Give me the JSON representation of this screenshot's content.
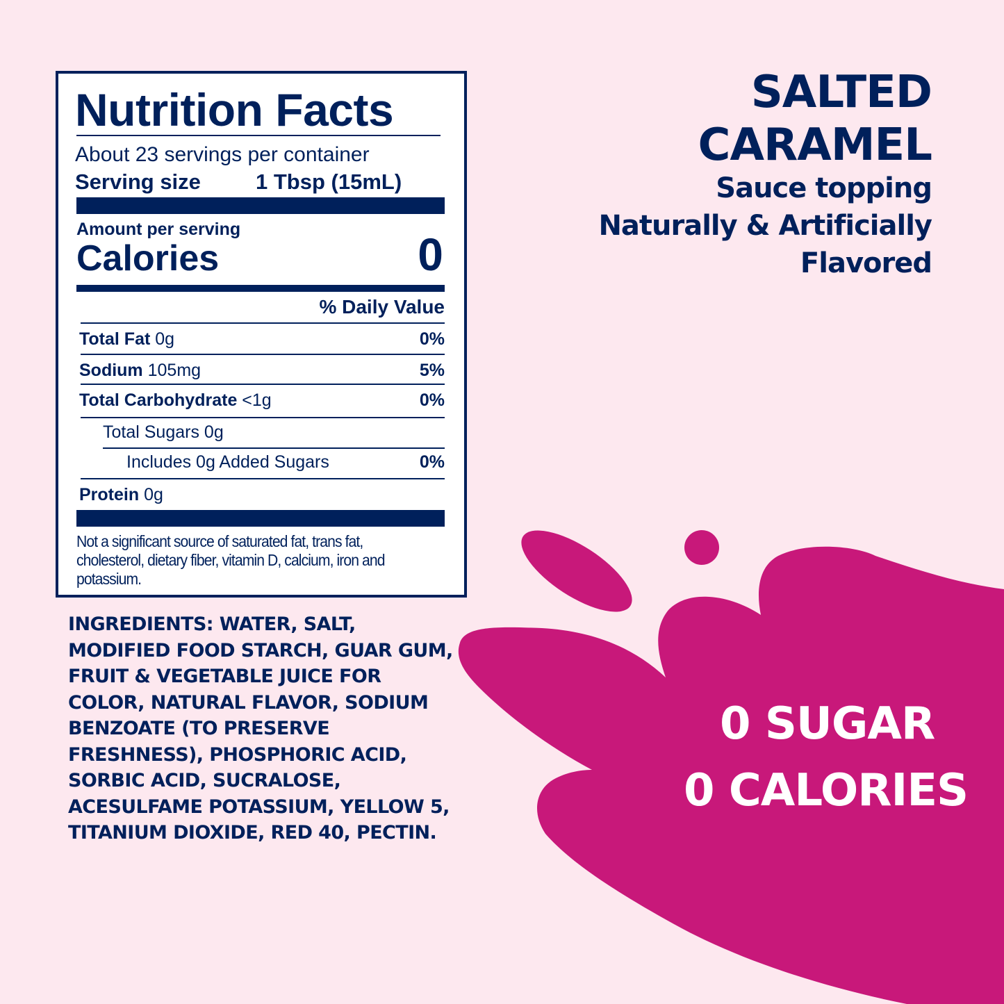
{
  "colors": {
    "navy": "#00205b",
    "background": "#fde8ef",
    "splash": "#c8187a"
  },
  "nutrition": {
    "title": "Nutrition Facts",
    "servings": "About 23 servings per container",
    "serving_size_label": "Serving size",
    "serving_size_value": "1 Tbsp (15mL)",
    "amount_per_serving": "Amount per serving",
    "calories_label": "Calories",
    "calories_value": "0",
    "daily_value_header": "% Daily Value",
    "rows": [
      {
        "name": "Total Fat",
        "amount": "0g",
        "dv": "0%"
      },
      {
        "name": "Sodium",
        "amount": "105mg",
        "dv": "5%"
      },
      {
        "name": "Total Carbohydrate",
        "amount": "<1g",
        "dv": "0%"
      },
      {
        "name": "",
        "amount": "Total Sugars 0g",
        "dv": ""
      },
      {
        "name": "",
        "amount": "Includes 0g Added Sugars",
        "dv": "0%"
      },
      {
        "name": "Protein",
        "amount": "0g",
        "dv": ""
      }
    ],
    "footnote": "Not a significant source of saturated fat, trans fat, cholesterol, dietary fiber, vitamin D, calcium, iron and potassium."
  },
  "ingredients": "INGREDIENTS: WATER, SALT, MODIFIED FOOD STARCH, GUAR GUM, FRUIT & VEGETABLE JUICE FOR COLOR, NATURAL FLAVOR, SODIUM BENZOATE (TO PRESERVE FRESHNESS), PHOSPHORIC ACID, SORBIC ACID, SUCRALOSE, ACESULFAME POTASSIUM, YELLOW 5, TITANIUM DIOXIDE, RED 40, PECTIN.",
  "product": {
    "name_line1": "SALTED",
    "name_line2": "CARAMEL",
    "desc_line1": "Sauce topping",
    "desc_line2": "Naturally & Artificially",
    "desc_line3": "Flavored"
  },
  "claims": {
    "line1": "0 SUGAR",
    "line2": "0 CALORIES"
  }
}
